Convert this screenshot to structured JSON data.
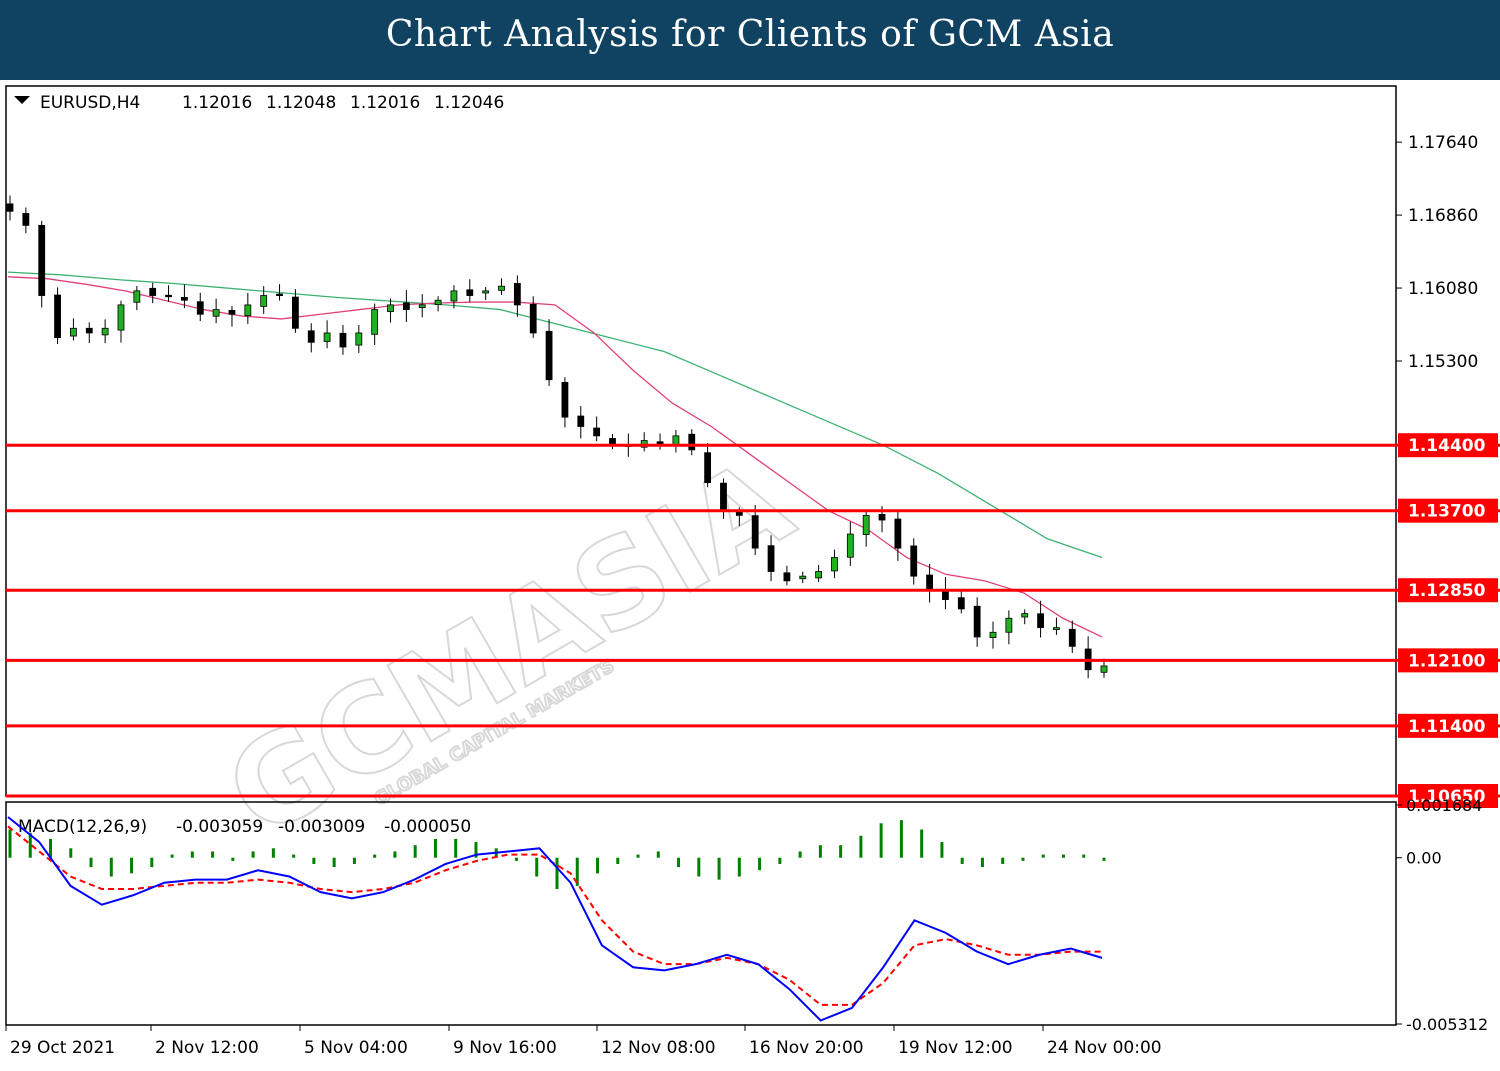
{
  "banner": {
    "title": "Chart Analysis for Clients of GCM Asia"
  },
  "colors": {
    "banner": "#0f4361",
    "level_line": "#ff0000",
    "ma_fast": "#e0407a",
    "ma_slow": "#3cb371",
    "macd_line": "#0000ff",
    "signal_line": "#ff0000",
    "histogram": "#008000",
    "bull": "#1fb11f",
    "bear": "#000000"
  },
  "watermark": {
    "main": "GCMASIA",
    "sub": "GLOBAL CAPITAL MARKETS"
  },
  "chart_data": [
    {
      "type": "candlestick",
      "symbol_header": "EURUSD,H4",
      "ohlc_header": [
        "1.12016",
        "1.12048",
        "1.12016",
        "1.12046"
      ],
      "ylim": [
        1.1065,
        1.1824
      ],
      "y_ticks": [
        "1.17640",
        "1.16860",
        "1.16080",
        "1.15300"
      ],
      "x_ticks": [
        "29 Oct 2021",
        "2 Nov 12:00",
        "5 Nov 04:00",
        "9 Nov 16:00",
        "12 Nov 08:00",
        "16 Nov 20:00",
        "19 Nov 12:00",
        "24 Nov 00:00"
      ],
      "levels": [
        "1.14400",
        "1.13700",
        "1.12850",
        "1.12100",
        "1.11400",
        "1.10650"
      ],
      "close_path": [
        1.169,
        1.1675,
        1.16,
        1.1555,
        1.1565,
        1.156,
        1.1565,
        1.159,
        1.1605,
        1.16,
        1.16,
        1.1595,
        1.158,
        1.1585,
        1.158,
        1.159,
        1.16,
        1.16,
        1.1565,
        1.155,
        1.156,
        1.1545,
        1.156,
        1.1585,
        1.159,
        1.1585,
        1.159,
        1.1595,
        1.1605,
        1.16,
        1.1605,
        1.161,
        1.159,
        1.156,
        1.151,
        1.147,
        1.146,
        1.145,
        1.144,
        1.144,
        1.1445,
        1.144,
        1.145,
        1.1435,
        1.14,
        1.137,
        1.1365,
        1.133,
        1.1305,
        1.1295,
        1.13,
        1.1305,
        1.132,
        1.1345,
        1.1365,
        1.136,
        1.133,
        1.13,
        1.1285,
        1.1275,
        1.1265,
        1.1235,
        1.124,
        1.1255,
        1.126,
        1.1245,
        1.1245,
        1.1225,
        1.12,
        1.1204
      ],
      "ma_fast": [
        1.162,
        1.1618,
        1.1612,
        1.1605,
        1.1595,
        1.1585,
        1.1578,
        1.1575,
        1.158,
        1.1585,
        1.159,
        1.1592,
        1.1593,
        1.1593,
        1.159,
        1.156,
        1.152,
        1.1485,
        1.146,
        1.143,
        1.14,
        1.137,
        1.135,
        1.132,
        1.1302,
        1.1295,
        1.1282,
        1.1255,
        1.1235
      ],
      "ma_slow": [
        1.1625,
        1.1622,
        1.1617,
        1.1613,
        1.1608,
        1.1603,
        1.1598,
        1.1594,
        1.159,
        1.1585,
        1.157,
        1.1555,
        1.154,
        1.1515,
        1.149,
        1.1465,
        1.144,
        1.141,
        1.1375,
        1.134,
        1.132
      ],
      "series": [
        {
          "name": "EURUSD,H4"
        },
        {
          "name": "MA fast"
        },
        {
          "name": "MA slow"
        }
      ]
    },
    {
      "type": "macd",
      "label": "MACD(12,26,9)",
      "values_header": [
        "-0.003059",
        "-0.003009",
        "-0.000050"
      ],
      "ylim": [
        -0.005312,
        0.001684
      ],
      "y_ticks": [
        "0.001684",
        "0.00",
        "-0.005312"
      ],
      "macd": [
        0.0013,
        0.0005,
        -0.0009,
        -0.0015,
        -0.0012,
        -0.0008,
        -0.0007,
        -0.0007,
        -0.0004,
        -0.0006,
        -0.0011,
        -0.0013,
        -0.0011,
        -0.0007,
        -0.0002,
        0.0001,
        0.0002,
        0.0003,
        -0.0008,
        -0.0028,
        -0.0035,
        -0.0036,
        -0.0034,
        -0.0031,
        -0.0034,
        -0.0042,
        -0.0052,
        -0.0048,
        -0.0035,
        -0.002,
        -0.0024,
        -0.003,
        -0.0034,
        -0.0031,
        -0.0029,
        -0.0032
      ],
      "signal": [
        0.001,
        0.0002,
        -0.0006,
        -0.001,
        -0.001,
        -0.0009,
        -0.0008,
        -0.0008,
        -0.0007,
        -0.0008,
        -0.001,
        -0.0011,
        -0.001,
        -0.0008,
        -0.0004,
        -0.0001,
        0.0001,
        0.0001,
        -0.0005,
        -0.002,
        -0.003,
        -0.0034,
        -0.0034,
        -0.0032,
        -0.0034,
        -0.0039,
        -0.0047,
        -0.0047,
        -0.004,
        -0.0028,
        -0.0026,
        -0.0028,
        -0.0031,
        -0.0031,
        -0.003,
        -0.003
      ],
      "histogram": [
        0.0009,
        0.0008,
        0.0006,
        0.0003,
        -0.0003,
        -0.0006,
        -0.0005,
        -0.0003,
        0.0001,
        0.0002,
        0.0002,
        -0.0001,
        0.0002,
        0.0003,
        0.0001,
        -0.0002,
        -0.0003,
        -0.0002,
        0.0001,
        0.0002,
        0.0004,
        0.0006,
        0.0006,
        0.0005,
        0.0003,
        -0.0001,
        -0.0006,
        -0.001,
        -0.0009,
        -0.0005,
        -0.0002,
        0.0001,
        0.0002,
        -0.0003,
        -0.0006,
        -0.0007,
        -0.0006,
        -0.0004,
        -0.0002,
        0.0002,
        0.0004,
        0.0004,
        0.0007,
        0.0011,
        0.0012,
        0.0009,
        0.0005,
        -0.0002,
        -0.0003,
        -0.0002,
        -0.0001,
        0.0001,
        0.0001,
        0.0001,
        -0.0001
      ]
    }
  ]
}
